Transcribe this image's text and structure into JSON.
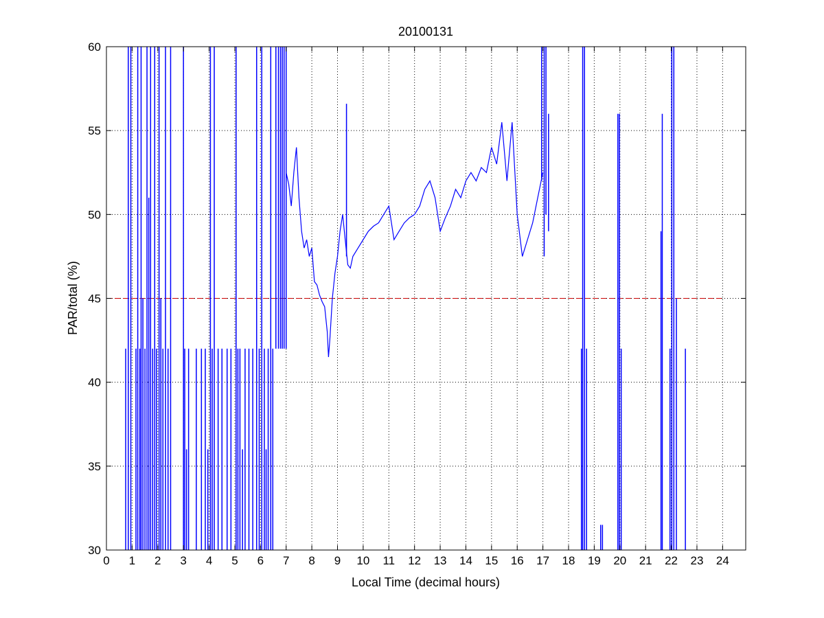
{
  "chart_data": {
    "type": "line",
    "title": "20100131",
    "xlabel": "Local Time (decimal hours)",
    "ylabel": "PAR/total (%)",
    "xlim": [
      0,
      24.9
    ],
    "ylim": [
      30,
      60
    ],
    "xticks": [
      0,
      1,
      2,
      3,
      4,
      5,
      6,
      7,
      8,
      9,
      10,
      11,
      12,
      13,
      14,
      15,
      16,
      17,
      18,
      19,
      20,
      21,
      22,
      23,
      24
    ],
    "yticks": [
      30,
      35,
      40,
      45,
      50,
      55,
      60
    ],
    "grid": true,
    "grid_style": "dotted",
    "colors": {
      "series": "#0000ff",
      "reference": "#cc0000"
    },
    "reference_line": {
      "y": 45,
      "x": [
        0,
        24
      ],
      "style": "dashed"
    },
    "series": [
      {
        "x": [
          7.0,
          7.1,
          7.2,
          7.3,
          7.4,
          7.5,
          7.6,
          7.7,
          7.8,
          7.9,
          8.0,
          8.1,
          8.2,
          8.3,
          8.4,
          8.5,
          8.6,
          8.65,
          8.7,
          8.8,
          8.9,
          9.0,
          9.1,
          9.2,
          9.3,
          9.4,
          9.5,
          9.6,
          9.8,
          10.0,
          10.2,
          10.4,
          10.6,
          10.8,
          11.0,
          11.2,
          11.4,
          11.6,
          11.8,
          12.0,
          12.2,
          12.4,
          12.6,
          12.8,
          13.0,
          13.2,
          13.4,
          13.6,
          13.8,
          14.0,
          14.2,
          14.4,
          14.6,
          14.8,
          15.0,
          15.2,
          15.4,
          15.6,
          15.8,
          16.0,
          16.2,
          16.4,
          16.6,
          16.8,
          17.0
        ],
        "y": [
          52.5,
          51.8,
          50.5,
          52.5,
          54.0,
          51.0,
          49.0,
          48.0,
          48.5,
          47.5,
          48.0,
          46.0,
          45.8,
          45.2,
          44.8,
          44.5,
          43.0,
          41.5,
          42.5,
          45.0,
          46.5,
          47.5,
          49.0,
          50.0,
          48.5,
          47.0,
          46.8,
          47.5,
          48.0,
          48.5,
          49.0,
          49.3,
          49.5,
          50.0,
          50.5,
          48.5,
          49.0,
          49.5,
          49.8,
          50.0,
          50.5,
          51.5,
          52.0,
          51.0,
          49.0,
          49.8,
          50.5,
          51.5,
          51.0,
          52.0,
          52.5,
          52.0,
          52.8,
          52.5,
          54.0,
          53.0,
          55.5,
          52.0,
          55.5,
          50.0,
          47.5,
          48.5,
          49.5,
          51.0,
          52.5
        ]
      }
    ],
    "spikes": [
      {
        "x": 0.75,
        "y0": 30,
        "y1": 42
      },
      {
        "x": 0.85,
        "y0": 30,
        "y1": 60
      },
      {
        "x": 0.95,
        "y0": 30,
        "y1": 60
      },
      {
        "x": 1.15,
        "y0": 30,
        "y1": 42
      },
      {
        "x": 1.22,
        "y0": 30,
        "y1": 60
      },
      {
        "x": 1.3,
        "y0": 30,
        "y1": 42
      },
      {
        "x": 1.35,
        "y0": 30,
        "y1": 60
      },
      {
        "x": 1.42,
        "y0": 30,
        "y1": 45
      },
      {
        "x": 1.5,
        "y0": 30,
        "y1": 42
      },
      {
        "x": 1.58,
        "y0": 30,
        "y1": 60
      },
      {
        "x": 1.65,
        "y0": 30,
        "y1": 51
      },
      {
        "x": 1.72,
        "y0": 30,
        "y1": 60
      },
      {
        "x": 1.8,
        "y0": 30,
        "y1": 42
      },
      {
        "x": 1.88,
        "y0": 30,
        "y1": 60
      },
      {
        "x": 1.95,
        "y0": 30,
        "y1": 42
      },
      {
        "x": 2.05,
        "y0": 30,
        "y1": 60
      },
      {
        "x": 2.12,
        "y0": 30,
        "y1": 45
      },
      {
        "x": 2.2,
        "y0": 30,
        "y1": 42
      },
      {
        "x": 2.3,
        "y0": 30,
        "y1": 60
      },
      {
        "x": 2.4,
        "y0": 30,
        "y1": 42
      },
      {
        "x": 2.5,
        "y0": 30,
        "y1": 60
      },
      {
        "x": 3.0,
        "y0": 30,
        "y1": 60
      },
      {
        "x": 3.05,
        "y0": 30,
        "y1": 42
      },
      {
        "x": 3.12,
        "y0": 30,
        "y1": 36
      },
      {
        "x": 3.2,
        "y0": 30,
        "y1": 42
      },
      {
        "x": 3.5,
        "y0": 30,
        "y1": 42
      },
      {
        "x": 3.7,
        "y0": 30,
        "y1": 42
      },
      {
        "x": 3.85,
        "y0": 30,
        "y1": 42
      },
      {
        "x": 3.95,
        "y0": 30,
        "y1": 36
      },
      {
        "x": 4.05,
        "y0": 30,
        "y1": 60
      },
      {
        "x": 4.12,
        "y0": 30,
        "y1": 42
      },
      {
        "x": 4.2,
        "y0": 30,
        "y1": 60
      },
      {
        "x": 4.35,
        "y0": 30,
        "y1": 42
      },
      {
        "x": 4.5,
        "y0": 30,
        "y1": 42
      },
      {
        "x": 4.7,
        "y0": 30,
        "y1": 42
      },
      {
        "x": 4.85,
        "y0": 30,
        "y1": 42
      },
      {
        "x": 5.05,
        "y0": 30,
        "y1": 60
      },
      {
        "x": 5.12,
        "y0": 30,
        "y1": 42
      },
      {
        "x": 5.2,
        "y0": 30,
        "y1": 42
      },
      {
        "x": 5.3,
        "y0": 30,
        "y1": 36
      },
      {
        "x": 5.4,
        "y0": 30,
        "y1": 42
      },
      {
        "x": 5.55,
        "y0": 30,
        "y1": 42
      },
      {
        "x": 5.7,
        "y0": 30,
        "y1": 42
      },
      {
        "x": 5.85,
        "y0": 30,
        "y1": 60
      },
      {
        "x": 5.95,
        "y0": 30,
        "y1": 42
      },
      {
        "x": 6.05,
        "y0": 30,
        "y1": 60
      },
      {
        "x": 6.15,
        "y0": 30,
        "y1": 42
      },
      {
        "x": 6.22,
        "y0": 30,
        "y1": 36
      },
      {
        "x": 6.3,
        "y0": 30,
        "y1": 42
      },
      {
        "x": 6.4,
        "y0": 30,
        "y1": 60
      },
      {
        "x": 6.48,
        "y0": 30,
        "y1": 42
      },
      {
        "x": 6.6,
        "y0": 42,
        "y1": 60
      },
      {
        "x": 6.7,
        "y0": 42,
        "y1": 60
      },
      {
        "x": 6.78,
        "y0": 42,
        "y1": 60
      },
      {
        "x": 6.85,
        "y0": 42,
        "y1": 60
      },
      {
        "x": 6.92,
        "y0": 42,
        "y1": 60
      },
      {
        "x": 7.0,
        "y0": 42,
        "y1": 60
      },
      {
        "x": 9.35,
        "y0": 47.5,
        "y1": 56.6
      },
      {
        "x": 16.95,
        "y0": 52,
        "y1": 60
      },
      {
        "x": 17.05,
        "y0": 47.5,
        "y1": 60
      },
      {
        "x": 17.12,
        "y0": 50,
        "y1": 60
      },
      {
        "x": 17.22,
        "y0": 49,
        "y1": 56
      },
      {
        "x": 18.5,
        "y0": 30,
        "y1": 42
      },
      {
        "x": 18.55,
        "y0": 30,
        "y1": 60
      },
      {
        "x": 18.62,
        "y0": 30,
        "y1": 60
      },
      {
        "x": 18.7,
        "y0": 30,
        "y1": 42
      },
      {
        "x": 19.25,
        "y0": 30,
        "y1": 31.5
      },
      {
        "x": 19.32,
        "y0": 30,
        "y1": 31.5
      },
      {
        "x": 19.92,
        "y0": 30,
        "y1": 56
      },
      {
        "x": 19.98,
        "y0": 30,
        "y1": 56
      },
      {
        "x": 20.05,
        "y0": 30,
        "y1": 42
      },
      {
        "x": 21.6,
        "y0": 30,
        "y1": 49
      },
      {
        "x": 21.65,
        "y0": 30,
        "y1": 56
      },
      {
        "x": 21.95,
        "y0": 30,
        "y1": 42
      },
      {
        "x": 22.02,
        "y0": 30,
        "y1": 60
      },
      {
        "x": 22.1,
        "y0": 30,
        "y1": 60
      },
      {
        "x": 22.2,
        "y0": 30,
        "y1": 45
      },
      {
        "x": 22.55,
        "y0": 30,
        "y1": 42
      }
    ]
  }
}
